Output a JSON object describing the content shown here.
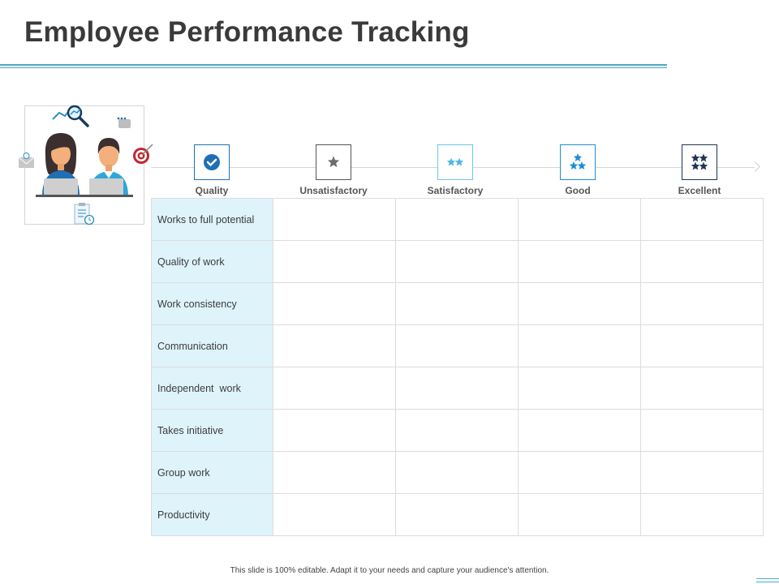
{
  "title": "Employee Performance Tracking",
  "ratings": [
    {
      "label": "Quality",
      "icon": "check-badge-icon",
      "stars": 0,
      "border": "#1f6fb5",
      "color": "#1f6fb5"
    },
    {
      "label": "Unsatisfactory",
      "icon": "one-star-icon",
      "stars": 1,
      "border": "#555555",
      "color": "#6b6b6b"
    },
    {
      "label": "Satisfactory",
      "icon": "two-stars-icon",
      "stars": 2,
      "border": "#6cc7e6",
      "color": "#4db8e0"
    },
    {
      "label": "Good",
      "icon": "three-stars-icon",
      "stars": 3,
      "border": "#1f8fd0",
      "color": "#1f8fd0"
    },
    {
      "label": "Excellent",
      "icon": "four-stars-icon",
      "stars": 4,
      "border": "#1e3552",
      "color": "#1e3552"
    }
  ],
  "criteria": [
    "Works to full potential",
    "Quality of work",
    "Work consistency",
    "Communication",
    "Independent  work",
    "Takes initiative",
    "Group work",
    "Productivity"
  ],
  "footer": "This slide is 100% editable.  Adapt it to your needs and capture your audience's attention."
}
